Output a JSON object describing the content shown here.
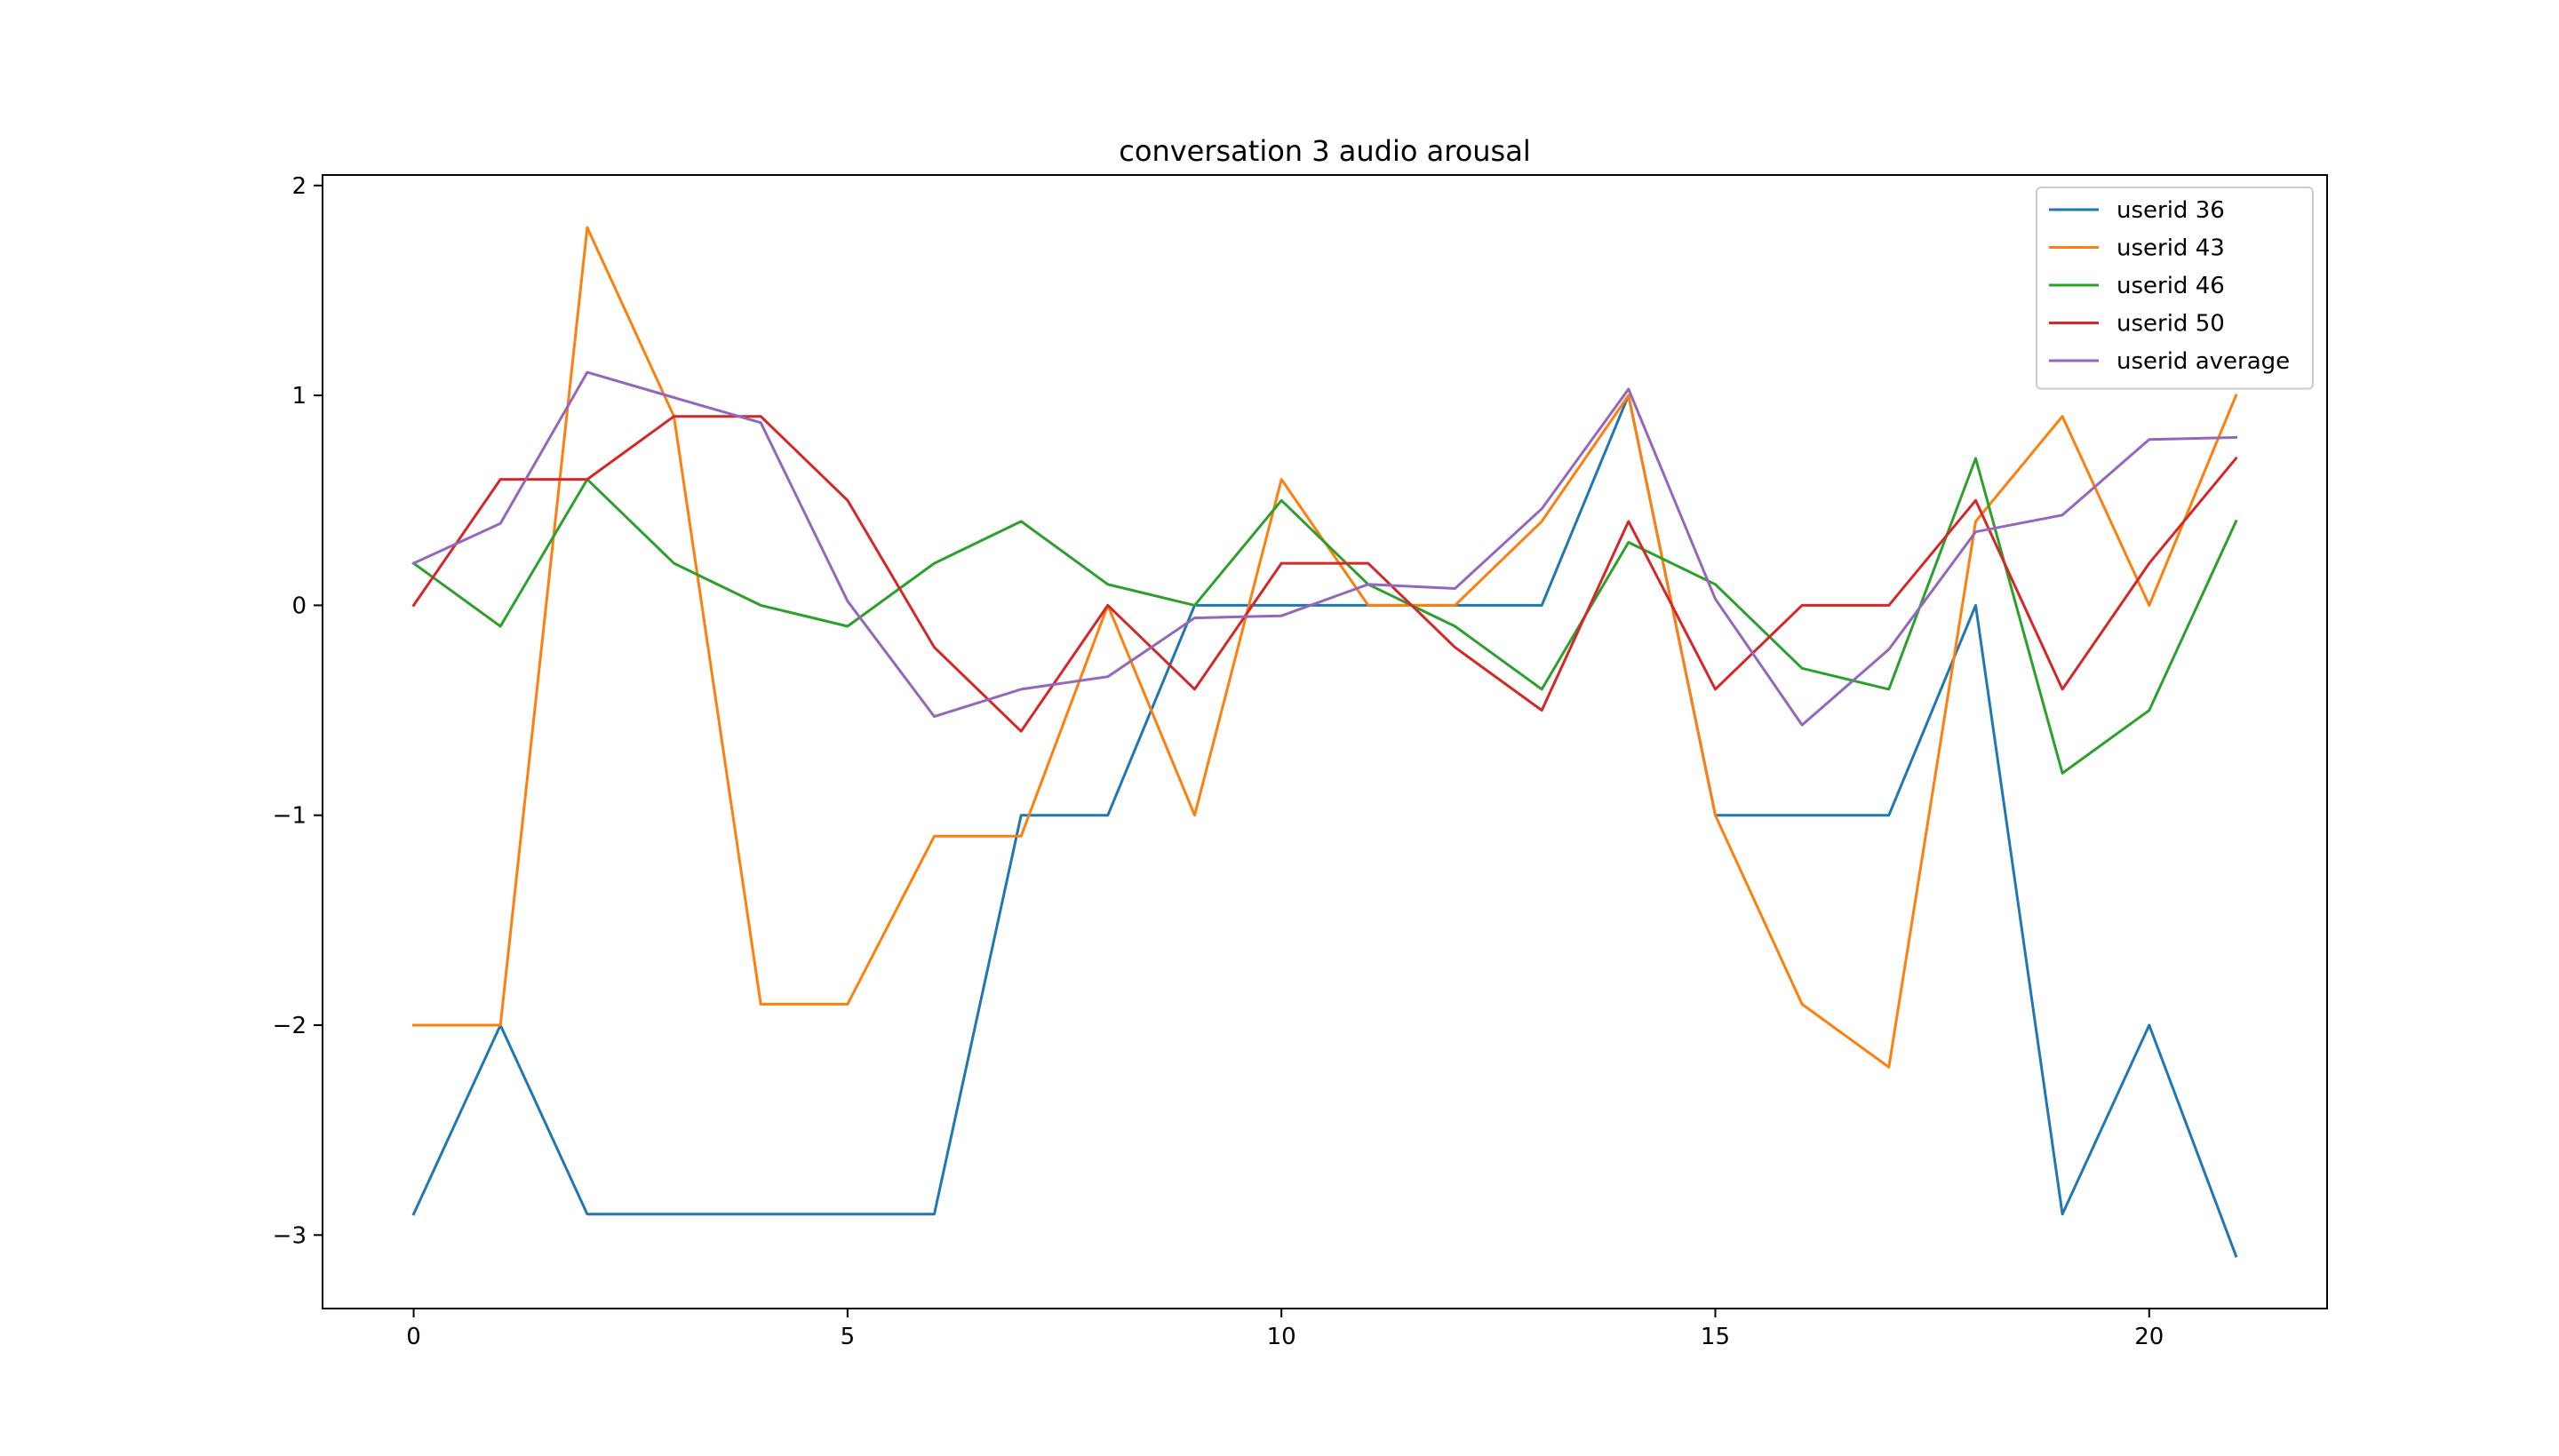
{
  "chart_data": {
    "type": "line",
    "title": "conversation 3 audio arousal",
    "xlabel": "",
    "ylabel": "",
    "xlim": [
      -1.05,
      22.05
    ],
    "ylim": [
      -3.35,
      2.05
    ],
    "xticks": [
      0,
      5,
      10,
      15,
      20
    ],
    "xtick_labels": [
      "0",
      "5",
      "10",
      "15",
      "20"
    ],
    "yticks": [
      -3,
      -2,
      -1,
      0,
      1,
      2
    ],
    "ytick_labels": [
      "−3",
      "−2",
      "−1",
      "0",
      "1",
      "2"
    ],
    "grid": false,
    "legend_position": "top-right",
    "x": [
      0,
      1,
      2,
      3,
      4,
      5,
      6,
      7,
      8,
      9,
      10,
      11,
      12,
      13,
      14,
      15,
      16,
      17,
      18,
      19,
      20,
      21
    ],
    "series": [
      {
        "name": "userid 36",
        "color": "#1f77b4",
        "values": [
          -2.9,
          -2.0,
          -2.9,
          -2.9,
          -2.9,
          -2.9,
          -2.9,
          -1.0,
          -1.0,
          0.0,
          0.0,
          0.0,
          0.0,
          0.0,
          1.0,
          -1.0,
          -1.0,
          -1.0,
          0.0,
          -2.9,
          -2.0,
          -3.1
        ]
      },
      {
        "name": "userid 43",
        "color": "#ff7f0e",
        "values": [
          -2.0,
          -2.0,
          1.8,
          0.9,
          -1.9,
          -1.9,
          -1.1,
          -1.1,
          0.0,
          -1.0,
          0.6,
          0.0,
          0.0,
          0.4,
          1.0,
          -1.0,
          -1.9,
          -2.2,
          0.4,
          0.9,
          0.0,
          1.0
        ]
      },
      {
        "name": "userid 46",
        "color": "#2ca02c",
        "values": [
          0.2,
          -0.1,
          0.6,
          0.2,
          0.0,
          -0.1,
          0.2,
          0.4,
          0.1,
          0.0,
          0.5,
          0.1,
          -0.1,
          -0.4,
          0.3,
          0.1,
          -0.3,
          -0.4,
          0.7,
          -0.8,
          -0.5,
          0.4
        ]
      },
      {
        "name": "userid 50",
        "color": "#d62728",
        "values": [
          0.0,
          0.6,
          0.6,
          0.9,
          0.9,
          0.5,
          -0.2,
          -0.6,
          0.0,
          -0.4,
          0.2,
          0.2,
          -0.2,
          -0.5,
          0.4,
          -0.4,
          0.0,
          0.0,
          0.5,
          -0.4,
          0.2,
          0.7
        ]
      },
      {
        "name": "userid average",
        "color": "#9467bd",
        "values": [
          0.2,
          0.39,
          1.11,
          0.99,
          0.87,
          0.02,
          -0.53,
          -0.4,
          -0.34,
          -0.06,
          -0.05,
          0.1,
          0.08,
          0.46,
          1.03,
          0.03,
          -0.57,
          -0.21,
          0.35,
          0.43,
          0.79,
          0.8
        ]
      }
    ]
  }
}
